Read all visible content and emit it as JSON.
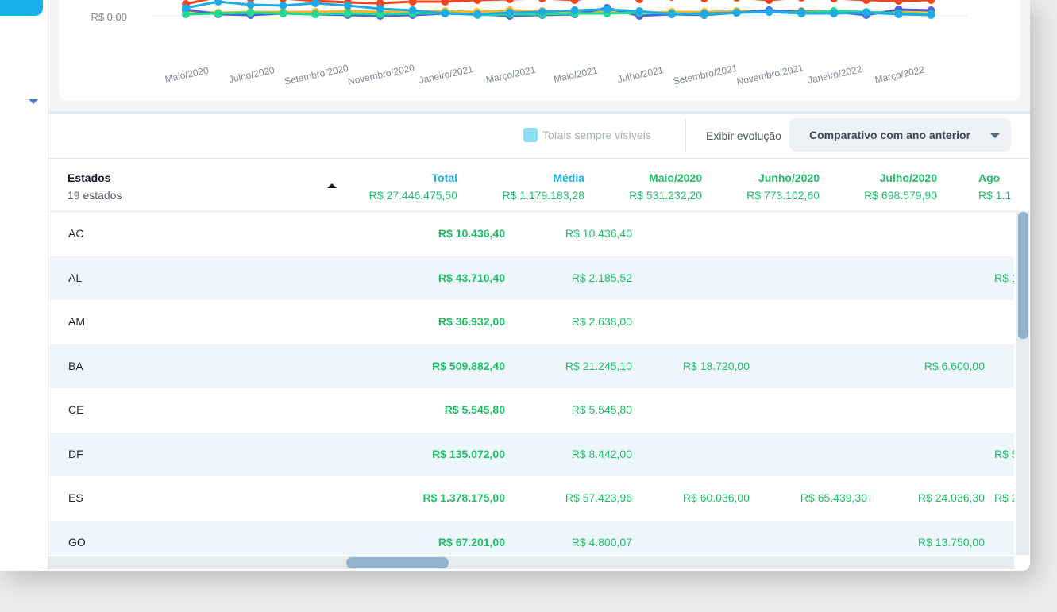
{
  "chart": {
    "y_tick_label": "R$ 0.00",
    "x_labels": [
      "Maio/2020",
      "Julho/2020",
      "Setembro/2020",
      "Novembro/2020",
      "Janeiro/2021",
      "Março/2021",
      "Maio/2021",
      "Julho/2021",
      "Setembro/2021",
      "Novembro/2021",
      "Janeiro/2022",
      "Março/2022"
    ],
    "series_colors": [
      "#f0441e",
      "#f4b528",
      "#4c63e0",
      "#1fdc8f",
      "#1fa9e6"
    ]
  },
  "toolbar": {
    "totals_label": "Totais sempre visíveis",
    "evolution_label": "Exibir evolução",
    "evolution_value": "Comparativo com ano anterior"
  },
  "table": {
    "headers": [
      {
        "name": "Estados",
        "sub": "19 estados"
      },
      {
        "name": "Total",
        "sub": "R$ 27.446.475,50",
        "color": "#18b2e6"
      },
      {
        "name": "Média",
        "sub": "R$ 1.179.183,28",
        "color": "#18b2e6"
      },
      {
        "name": "Maio/2020",
        "sub": "R$ 531.232,20",
        "color": "#1fbf67"
      },
      {
        "name": "Junho/2020",
        "sub": "R$ 773.102,60",
        "color": "#1fbf67"
      },
      {
        "name": "Julho/2020",
        "sub": "R$ 698.579,90",
        "color": "#1fbf67"
      },
      {
        "name": "Ago",
        "sub": "R$ 1.1",
        "color": "#1fbf67"
      }
    ],
    "rows": [
      {
        "state": "AC",
        "total": "R$ 10.436,40",
        "avg": "R$ 10.436,40",
        "m1": "",
        "m2": "",
        "m3": "",
        "m4": ""
      },
      {
        "state": "AL",
        "total": "R$ 43.710,40",
        "avg": "R$ 2.185,52",
        "m1": "",
        "m2": "",
        "m3": "",
        "m4": "R$ 1"
      },
      {
        "state": "AM",
        "total": "R$ 36.932,00",
        "avg": "R$ 2.638,00",
        "m1": "",
        "m2": "",
        "m3": "",
        "m4": ""
      },
      {
        "state": "BA",
        "total": "R$ 509.882,40",
        "avg": "R$ 21.245,10",
        "m1": "R$ 18.720,00",
        "m2": "",
        "m3": "R$ 6.600,00",
        "m4": ""
      },
      {
        "state": "CE",
        "total": "R$ 5.545,80",
        "avg": "R$ 5.545,80",
        "m1": "",
        "m2": "",
        "m3": "",
        "m4": ""
      },
      {
        "state": "DF",
        "total": "R$ 135.072,00",
        "avg": "R$ 8.442,00",
        "m1": "",
        "m2": "",
        "m3": "",
        "m4": "R$ 5"
      },
      {
        "state": "ES",
        "total": "R$ 1.378.175,00",
        "avg": "R$ 57.423,96",
        "m1": "R$ 60.036,00",
        "m2": "R$ 65.439,30",
        "m3": "R$ 24.036,30",
        "m4": "R$ 2"
      },
      {
        "state": "GO",
        "total": "R$ 67.201,00",
        "avg": "R$ 4.800,07",
        "m1": "",
        "m2": "",
        "m3": "R$ 13.750,00",
        "m4": ""
      }
    ]
  }
}
